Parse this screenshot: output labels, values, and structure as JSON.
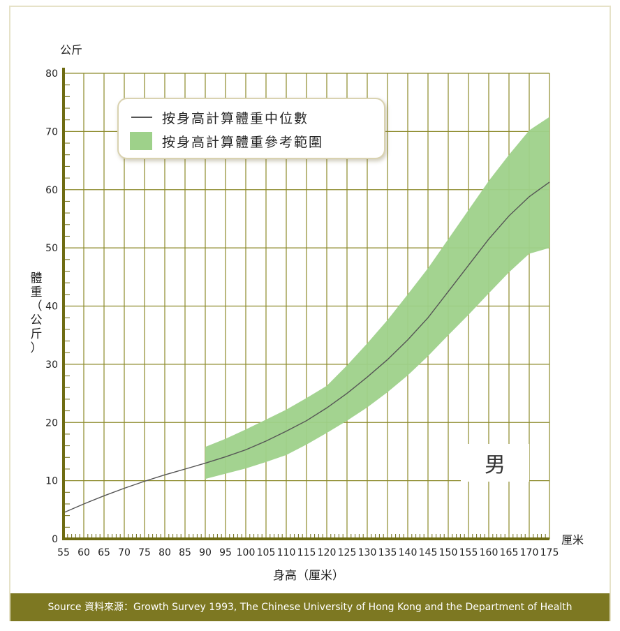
{
  "chart_data": {
    "type": "line",
    "title": "",
    "xlabel": "身高（厘米）",
    "ylabel": "體重（公斤）",
    "x_unit": "厘米",
    "y_unit": "公斤",
    "xlim": [
      55,
      175
    ],
    "ylim": [
      0,
      80
    ],
    "x_ticks": [
      55,
      60,
      65,
      70,
      75,
      80,
      85,
      90,
      95,
      100,
      105,
      110,
      115,
      120,
      125,
      130,
      135,
      140,
      145,
      150,
      155,
      160,
      165,
      170,
      175
    ],
    "y_ticks": [
      0,
      10,
      20,
      30,
      40,
      50,
      60,
      70,
      80
    ],
    "grid": true,
    "legend_position": "top-left",
    "series": [
      {
        "name": "按身高計算體重中位數",
        "type": "line",
        "x": [
          55,
          60,
          65,
          70,
          75,
          80,
          85,
          90,
          95,
          100,
          105,
          110,
          115,
          120,
          125,
          130,
          135,
          140,
          145,
          150,
          155,
          160,
          165,
          170,
          175
        ],
        "y": [
          4.5,
          6.0,
          7.4,
          8.7,
          9.9,
          11.0,
          12.0,
          13.0,
          14.1,
          15.3,
          16.8,
          18.5,
          20.3,
          22.5,
          25.0,
          27.8,
          30.8,
          34.2,
          38.0,
          42.5,
          47.0,
          51.5,
          55.5,
          58.8,
          61.3
        ]
      },
      {
        "name": "按身高計算體重參考範圍",
        "type": "band",
        "x": [
          90,
          95,
          100,
          105,
          110,
          115,
          120,
          125,
          130,
          135,
          140,
          145,
          150,
          155,
          160,
          165,
          170,
          175
        ],
        "lower": [
          10.3,
          11.2,
          12.1,
          13.2,
          14.4,
          16.2,
          18.2,
          20.3,
          22.6,
          25.2,
          28.1,
          31.4,
          35.0,
          38.5,
          42.2,
          45.8,
          49.0,
          50.0
        ],
        "upper": [
          15.8,
          17.2,
          18.8,
          20.5,
          22.2,
          24.2,
          26.3,
          29.8,
          33.6,
          37.6,
          42.0,
          46.5,
          51.5,
          56.5,
          61.5,
          66.0,
          70.2,
          72.5
        ]
      }
    ]
  },
  "labels": {
    "y_unit_top": "公斤",
    "x_unit_right": "厘米",
    "y_axis_title": "體重（公斤）",
    "x_axis_title": "身高（厘米）",
    "gender": "男"
  },
  "legend": {
    "median": "按身高計算體重中位數",
    "range": "按身高計算體重參考範圍"
  },
  "footer": {
    "source": "Source 資料來源：Growth Survey 1993, The Chinese University of Hong Kong and the Department of Health"
  },
  "colors": {
    "grid": "#8c8a2a",
    "axis": "#6e6b12",
    "band": "#9ed18a",
    "median_line": "#555555",
    "footer_bg": "#7d7822"
  }
}
